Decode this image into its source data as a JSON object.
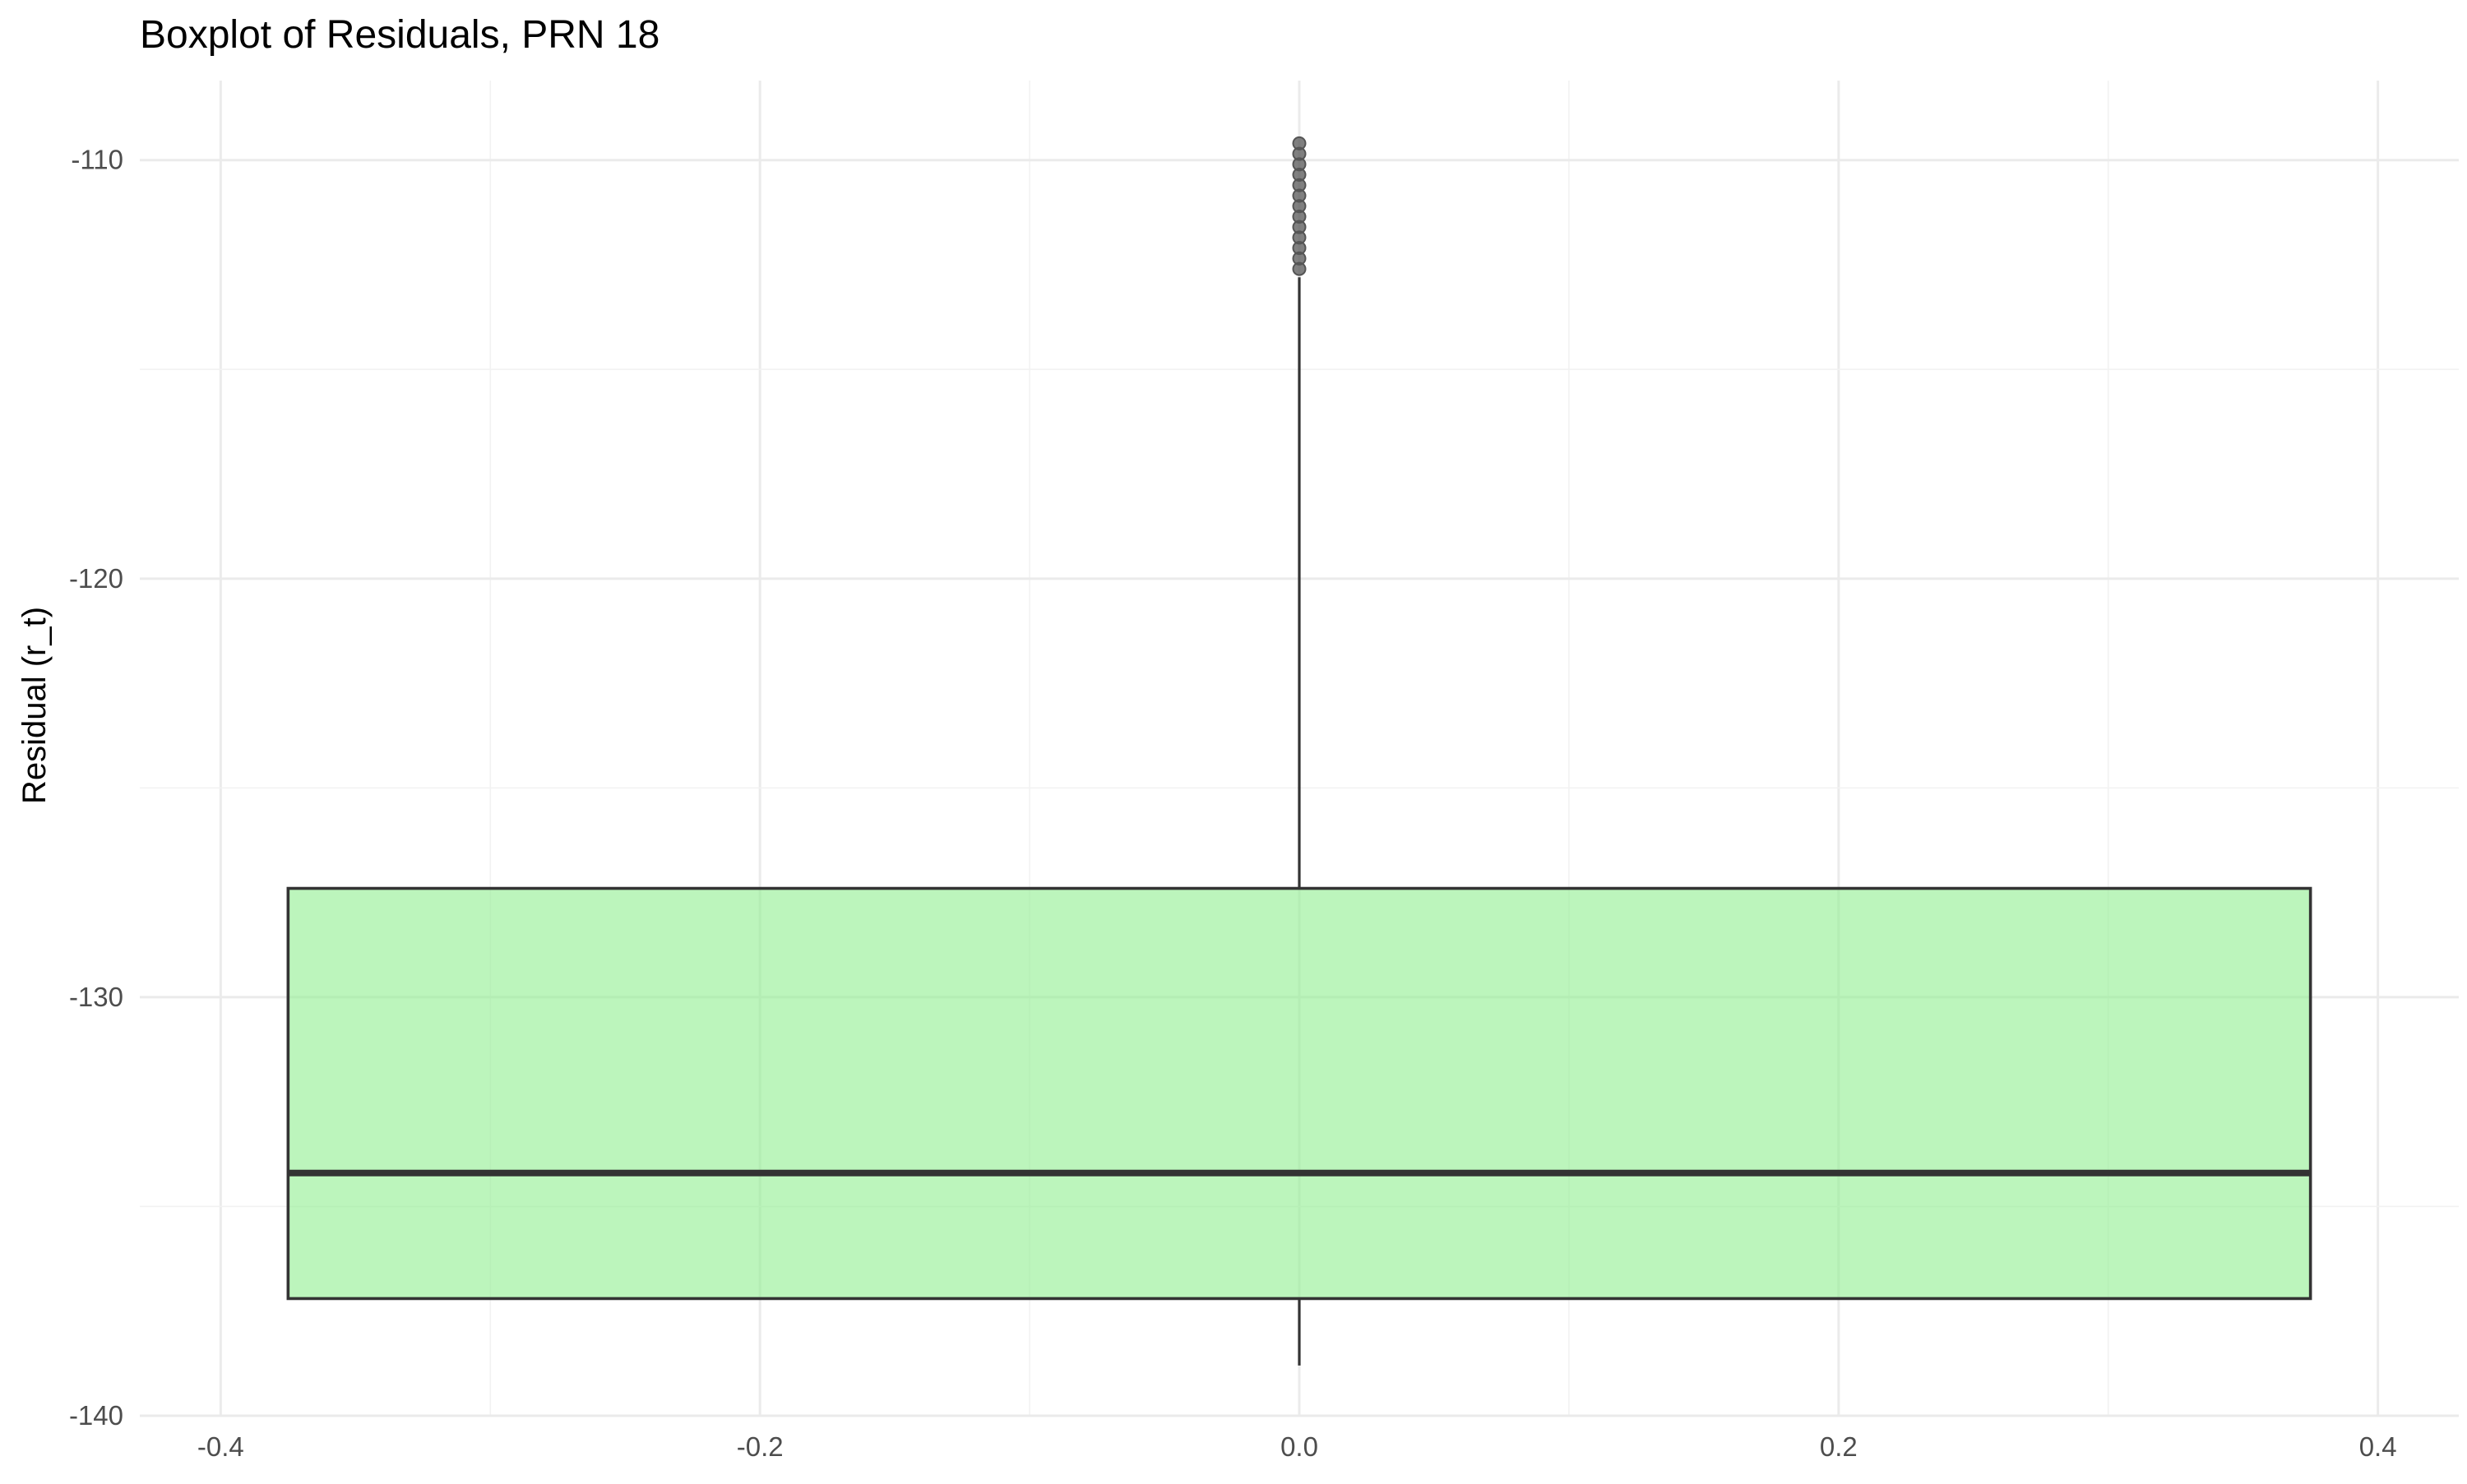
{
  "chart_data": {
    "type": "boxplot",
    "title": "Boxplot of Residuals, PRN 18",
    "xlabel": "",
    "ylabel": "Residual (r_t)",
    "xlim": [
      -0.43,
      0.43
    ],
    "ylim": [
      -140,
      -108.1
    ],
    "x_ticks": [
      -0.4,
      -0.2,
      0.0,
      0.2,
      0.4
    ],
    "x_tick_labels": [
      "-0.4",
      "-0.2",
      "0.0",
      "0.2",
      "0.4"
    ],
    "y_ticks": [
      -110,
      -120,
      -130,
      -140
    ],
    "y_tick_labels": [
      "-110",
      "-120",
      "-130",
      "-140"
    ],
    "grid": true,
    "box": {
      "x_center": 0.0,
      "x_left": -0.375,
      "x_right": 0.375,
      "q1": -137.2,
      "median": -134.2,
      "q3": -127.4,
      "whisker_low": -138.8,
      "whisker_high": -112.8,
      "fill_color": "#90EE90",
      "fill_opacity": 0.6,
      "stroke_color": "#333333"
    },
    "outliers": [
      -109.6,
      -109.85,
      -110.1,
      -110.35,
      -110.6,
      -110.85,
      -111.1,
      -111.35,
      -111.6,
      -111.85,
      -112.1,
      -112.35,
      -112.6
    ],
    "outlier_color": "#555555"
  }
}
